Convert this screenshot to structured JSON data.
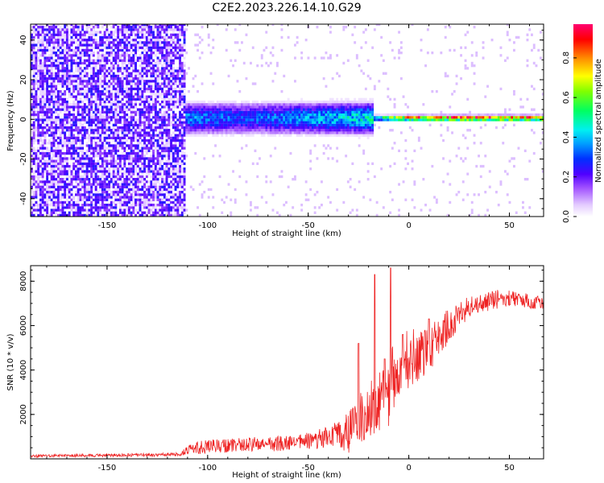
{
  "title": "C2E2.2023.226.14.10.G29",
  "chart_data": [
    {
      "type": "heatmap",
      "xlabel": "Height of straight line (km)",
      "ylabel": "Frequency (Hz)",
      "xlim": [
        -188,
        67
      ],
      "ylim": [
        -49,
        48
      ],
      "xticks": [
        -150,
        -100,
        -50,
        0,
        50
      ],
      "yticks": [
        -40,
        -20,
        0,
        20,
        40
      ],
      "colorbar": {
        "label": "Normalized spectral amplitude",
        "range": [
          0,
          0.97
        ],
        "ticks": [
          0.0,
          0.2,
          0.4,
          0.6,
          0.8
        ]
      },
      "regions": [
        {
          "x_range": [
            -188,
            -112
          ],
          "freq_halfwidth": 48,
          "amplitude": 0.15,
          "description": "broadband noise"
        },
        {
          "x_range": [
            -112,
            -18
          ],
          "freq_halfwidth": 8,
          "amplitude": 0.35
        },
        {
          "x_range": [
            -18,
            67
          ],
          "freq_halfwidth": 1.5,
          "amplitude": 0.9
        }
      ],
      "centerline_amplitude_profile": [
        {
          "x": -110,
          "amplitude": 0.35
        },
        {
          "x": -80,
          "amplitude": 0.3
        },
        {
          "x": -50,
          "amplitude": 0.38
        },
        {
          "x": -20,
          "amplitude": 0.45
        },
        {
          "x": 0,
          "amplitude": 0.85
        },
        {
          "x": 30,
          "amplitude": 0.92
        },
        {
          "x": 67,
          "amplitude": 0.9
        }
      ]
    },
    {
      "type": "line",
      "xlabel": "Height of straight line (km)",
      "ylabel": "SNR (10 * v/v)",
      "xlim": [
        -188,
        67
      ],
      "ylim": [
        0,
        8700
      ],
      "xticks": [
        -150,
        -100,
        -50,
        0,
        50
      ],
      "yticks": [
        2000,
        4000,
        6000,
        8000
      ],
      "color": "#ee2222",
      "series": [
        {
          "x": [
            -188,
            -170,
            -150,
            -130,
            -115,
            -108,
            -100,
            -90,
            -80,
            -70,
            -60,
            -50,
            -40,
            -30,
            -25,
            -20,
            -15,
            -10,
            -8,
            -5,
            0,
            5,
            10,
            15,
            20,
            25,
            30,
            35,
            40,
            45,
            50,
            55,
            60,
            67
          ],
          "y": [
            120,
            150,
            160,
            170,
            200,
            450,
            550,
            600,
            650,
            650,
            700,
            800,
            950,
            1200,
            1700,
            2300,
            2600,
            2900,
            3600,
            4100,
            4500,
            4700,
            4900,
            5500,
            6000,
            6500,
            6800,
            7000,
            7100,
            7200,
            7250,
            7200,
            7100,
            7050
          ],
          "spikes": [
            {
              "x": -25,
              "y": 5200
            },
            {
              "x": -17,
              "y": 8300
            },
            {
              "x": -12,
              "y": 4500
            },
            {
              "x": -9,
              "y": 8600
            },
            {
              "x": -3,
              "y": 5600
            },
            {
              "x": 10,
              "y": 6300
            }
          ],
          "noise_amplitude": [
            {
              "x": -188,
              "a": 60
            },
            {
              "x": -115,
              "a": 80
            },
            {
              "x": -105,
              "a": 300
            },
            {
              "x": -60,
              "a": 350
            },
            {
              "x": -40,
              "a": 500
            },
            {
              "x": -25,
              "a": 1200
            },
            {
              "x": -8,
              "a": 1500
            },
            {
              "x": 10,
              "a": 1100
            },
            {
              "x": 30,
              "a": 500
            },
            {
              "x": 67,
              "a": 300
            }
          ]
        }
      ]
    }
  ]
}
